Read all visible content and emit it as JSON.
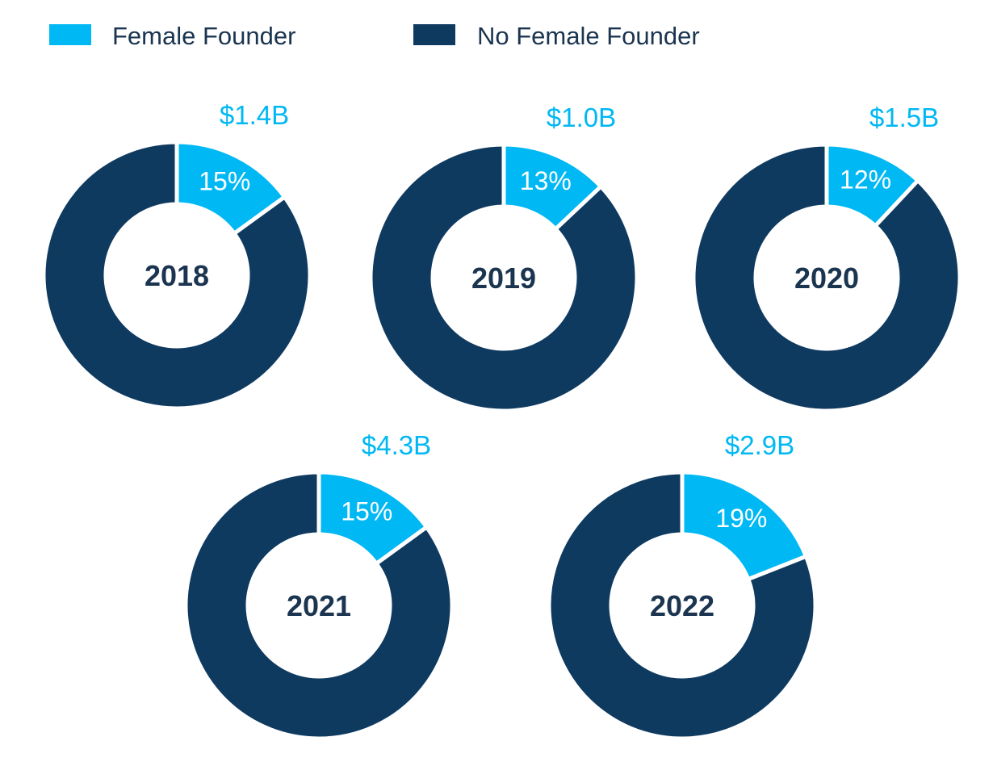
{
  "legend": {
    "placement": "top-left",
    "items": [
      {
        "label": "Female Founder",
        "color": "#00b8f4"
      },
      {
        "label": "No Female Founder",
        "color": "#0f3a60"
      }
    ]
  },
  "colors": {
    "female_founder": "#00b8f4",
    "no_female_founder": "#0f3a60",
    "center_label": "#1b3550",
    "value_label": "#00b8f4",
    "background": "#ffffff"
  },
  "chart_data": [
    {
      "type": "pie",
      "center_label": "2018",
      "amount_label": "$1.4B",
      "slices": [
        {
          "name": "Female Founder",
          "value": 15,
          "label": "15%"
        },
        {
          "name": "No Female Founder",
          "value": 85
        }
      ]
    },
    {
      "type": "pie",
      "center_label": "2019",
      "amount_label": "$1.0B",
      "slices": [
        {
          "name": "Female Founder",
          "value": 13,
          "label": "13%"
        },
        {
          "name": "No Female Founder",
          "value": 87
        }
      ]
    },
    {
      "type": "pie",
      "center_label": "2020",
      "amount_label": "$1.5B",
      "slices": [
        {
          "name": "Female Founder",
          "value": 12,
          "label": "12%"
        },
        {
          "name": "No Female Founder",
          "value": 88
        }
      ]
    },
    {
      "type": "pie",
      "center_label": "2021",
      "amount_label": "$4.3B",
      "slices": [
        {
          "name": "Female Founder",
          "value": 15,
          "label": "15%"
        },
        {
          "name": "No Female Founder",
          "value": 85
        }
      ]
    },
    {
      "type": "pie",
      "center_label": "2022",
      "amount_label": "$2.9B",
      "slices": [
        {
          "name": "Female Founder",
          "value": 19,
          "label": "19%"
        },
        {
          "name": "No Female Founder",
          "value": 81
        }
      ]
    }
  ]
}
